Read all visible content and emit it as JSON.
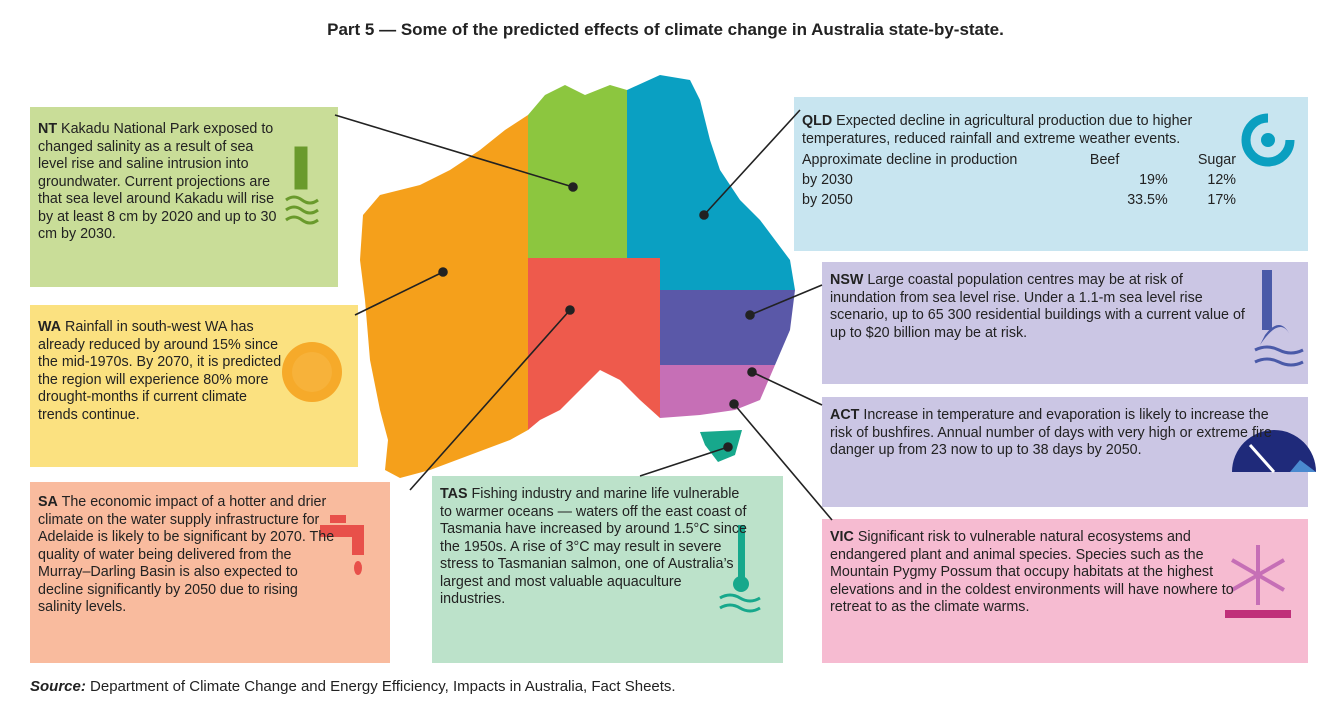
{
  "title": "Part 5 — Some of the predicted effects of climate change in Australia state-by-state.",
  "boxes": [
    {
      "state": "NT",
      "text": "Kakadu National Park exposed to changed salinity as a result of sea level rise and saline intrusion into groundwater. Current projections are that sea level around Kakadu will rise by at least 8 cm by 2020 and up to 30 cm by 2030."
    },
    {
      "state": "WA",
      "text": "Rainfall in south-west WA has already reduced by around 15% since the mid-1970s. By 2070, it is predicted the region will experience 80% more drought-months if current climate trends continue."
    },
    {
      "state": "SA",
      "text": "The economic impact of a hotter and drier climate on the water supply infrastructure for Adelaide is likely to be significant by 2070. The quality of water being delivered from the Murray–Darling Basin is also expected to decline significantly by 2050 due to rising salinity levels."
    },
    {
      "state": "TAS",
      "text": "Fishing industry and marine life vulnerable to warmer oceans — waters off the east coast of Tasmania have increased by around 1.5°C since the 1950s. A rise of 3°C may result in severe stress to Tasmanian salmon, one of Australia’s largest and most valuable aquaculture industries."
    },
    {
      "state": "QLD",
      "text": "Expected decline in agricultural production due to higher temperatures, reduced rainfall and extreme weather events."
    },
    {
      "state": "NSW",
      "text": "Large coastal population centres may be at risk of inundation from sea level rise. Under a 1.1-m sea level rise scenario, up to 65 300 residential buildings with a current value of up to $20 billion may be at risk."
    },
    {
      "state": "ACT",
      "text": "Increase in temperature and evaporation is likely to increase the risk of bushfires. Annual number of days with very high or extreme fire danger up from 23 now to up to 38 days by 2050."
    },
    {
      "state": "VIC",
      "text": "Significant risk to vulnerable natural ecosystems and endangered plant and animal species. Species such as the Mountain Pygmy Possum that occupy habitats at the highest elevations and in the coldest environments will have nowhere to retreat to as the climate warms."
    }
  ],
  "qld_table": {
    "header": [
      "Approximate decline in production",
      "Beef",
      "Sugar"
    ],
    "rows": [
      [
        "by 2030",
        "19%",
        "12%"
      ],
      [
        "by 2050",
        "33.5%",
        "17%"
      ]
    ]
  },
  "source": {
    "label": "Source:",
    "text": "Department of Climate Change and Energy Efficiency, Impacts in Australia, Fact Sheets."
  }
}
